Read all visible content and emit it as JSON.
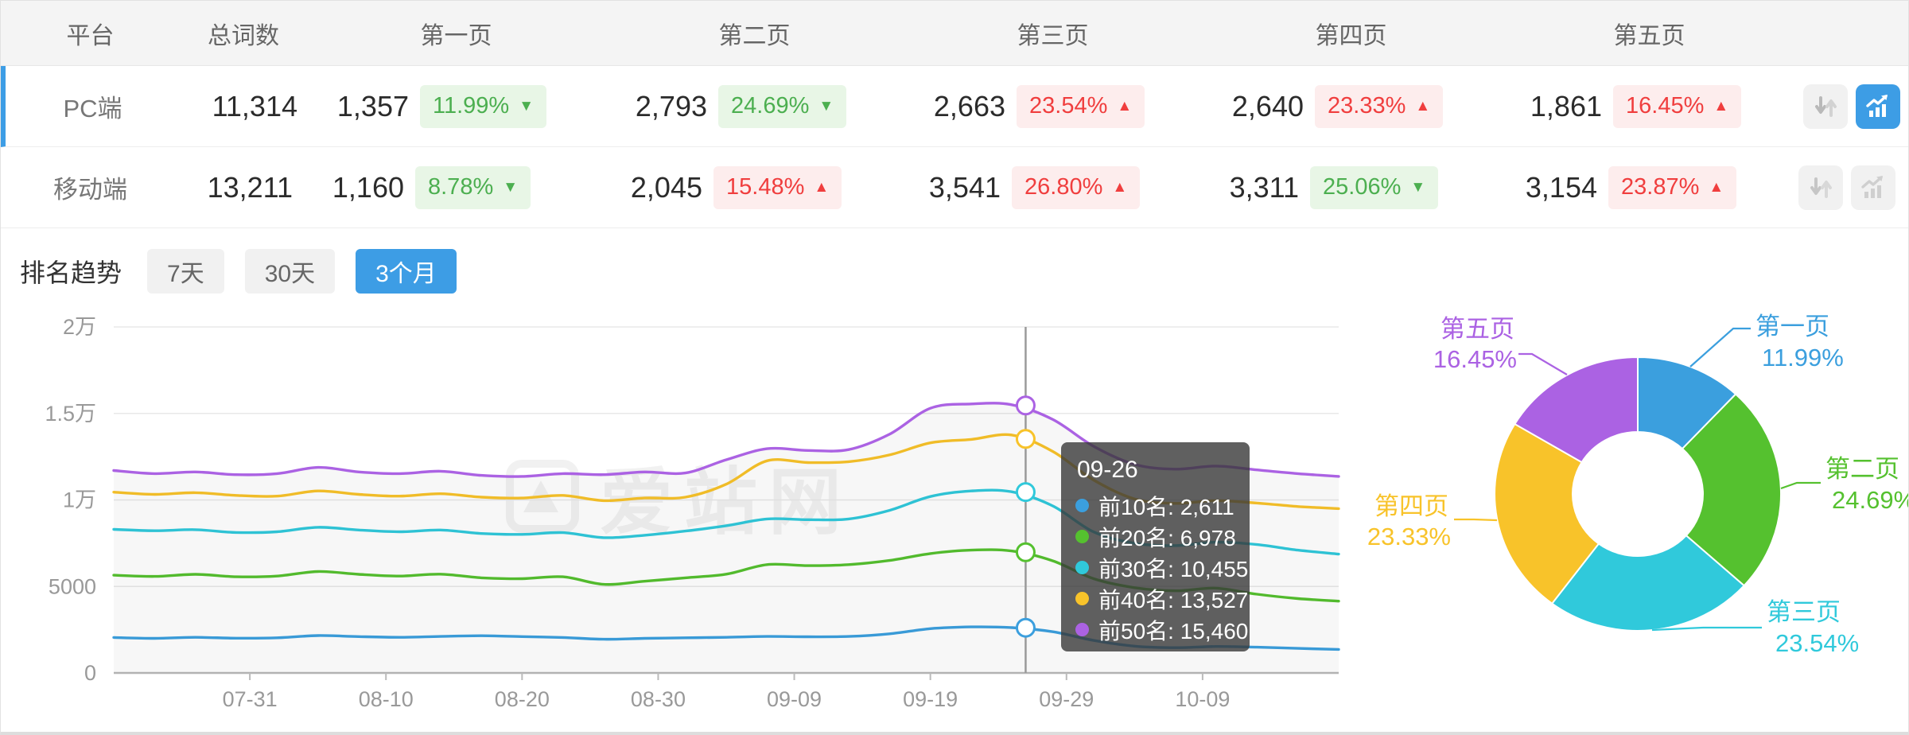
{
  "colors": {
    "accent_blue": "#3d9de5",
    "up_red": "#f03e3e",
    "down_green": "#4caf50",
    "badge_red_bg": "#fdeded",
    "badge_green_bg": "#e8f6e6"
  },
  "table": {
    "headers": [
      "平台",
      "总词数",
      "第一页",
      "第二页",
      "第三页",
      "第四页",
      "第五页"
    ],
    "rows": [
      {
        "platform": "PC端",
        "total": "11,314",
        "selected": true,
        "chart_active": true,
        "pages": [
          {
            "value": "1,357",
            "pct": "11.99%",
            "dir": "down"
          },
          {
            "value": "2,793",
            "pct": "24.69%",
            "dir": "down"
          },
          {
            "value": "2,663",
            "pct": "23.54%",
            "dir": "up"
          },
          {
            "value": "2,640",
            "pct": "23.33%",
            "dir": "up"
          },
          {
            "value": "1,861",
            "pct": "16.45%",
            "dir": "up"
          }
        ]
      },
      {
        "platform": "移动端",
        "total": "13,211",
        "selected": false,
        "chart_active": false,
        "pages": [
          {
            "value": "1,160",
            "pct": "8.78%",
            "dir": "down"
          },
          {
            "value": "2,045",
            "pct": "15.48%",
            "dir": "up"
          },
          {
            "value": "3,541",
            "pct": "26.80%",
            "dir": "up"
          },
          {
            "value": "3,311",
            "pct": "25.06%",
            "dir": "down"
          },
          {
            "value": "3,154",
            "pct": "23.87%",
            "dir": "up"
          }
        ]
      }
    ]
  },
  "trend": {
    "label": "排名趋势",
    "tabs": [
      {
        "label": "7天",
        "active": false
      },
      {
        "label": "30天",
        "active": false
      },
      {
        "label": "3个月",
        "active": true
      }
    ]
  },
  "chart_data": [
    {
      "type": "line",
      "title": "排名趋势 (3个月)",
      "watermark": "爱站网",
      "x_start": "07-21",
      "x_step_days": 3,
      "x_ticks": [
        "07-31",
        "08-10",
        "08-20",
        "08-30",
        "09-09",
        "09-19",
        "09-29",
        "10-09"
      ],
      "y_ticks": [
        {
          "label": "0",
          "value": 0
        },
        {
          "label": "5000",
          "value": 5000
        },
        {
          "label": "1万",
          "value": 10000
        },
        {
          "label": "1.5万",
          "value": 15000
        },
        {
          "label": "2万",
          "value": 20000
        }
      ],
      "ylim": [
        0,
        20000
      ],
      "grid": true,
      "series": [
        {
          "name": "前10名",
          "color": "#3b9fde",
          "values": [
            2050,
            2000,
            2060,
            2010,
            2030,
            2160,
            2100,
            2060,
            2110,
            2150,
            2100,
            2050,
            1950,
            2000,
            2030,
            2060,
            2110,
            2090,
            2110,
            2260,
            2560,
            2660,
            2620,
            2380,
            1880,
            1550,
            1460,
            1530,
            1490,
            1420,
            1360
          ]
        },
        {
          "name": "前20名",
          "color": "#55c12f",
          "values": [
            5650,
            5580,
            5700,
            5560,
            5600,
            5860,
            5700,
            5600,
            5710,
            5500,
            5450,
            5560,
            5120,
            5300,
            5500,
            5710,
            6260,
            6200,
            6260,
            6500,
            6900,
            7100,
            7050,
            6480,
            5450,
            4930,
            4750,
            4900,
            4550,
            4300,
            4150
          ]
        },
        {
          "name": "前30名",
          "color": "#30c9db",
          "values": [
            8300,
            8220,
            8280,
            8120,
            8160,
            8420,
            8260,
            8160,
            8260,
            8060,
            8010,
            8110,
            7820,
            7960,
            8200,
            8510,
            8900,
            8860,
            8900,
            9400,
            10200,
            10520,
            10470,
            9650,
            8150,
            7500,
            7360,
            7560,
            7420,
            7100,
            6870
          ]
        },
        {
          "name": "前40名",
          "color": "#f8c32a",
          "values": [
            10450,
            10320,
            10420,
            10260,
            10220,
            10520,
            10320,
            10220,
            10360,
            10160,
            10110,
            10260,
            9960,
            10110,
            10160,
            10910,
            12260,
            12160,
            12210,
            12600,
            13300,
            13500,
            13750,
            12800,
            11150,
            10060,
            9800,
            9960,
            9820,
            9620,
            9500
          ]
        },
        {
          "name": "前50名",
          "color": "#ab62e3",
          "values": [
            11700,
            11520,
            11620,
            11460,
            11520,
            11880,
            11620,
            11520,
            11660,
            11420,
            11360,
            11520,
            11460,
            11620,
            11560,
            12320,
            12960,
            12860,
            12910,
            13800,
            15300,
            15550,
            15500,
            14650,
            13100,
            12060,
            11780,
            11960,
            11740,
            11520,
            11360
          ]
        }
      ],
      "tooltip": {
        "date": "09-26",
        "day_index": 67,
        "items": [
          {
            "name": "前10名",
            "value": "2,611"
          },
          {
            "name": "前20名",
            "value": "6,978"
          },
          {
            "name": "前30名",
            "value": "10,455"
          },
          {
            "name": "前40名",
            "value": "13,527"
          },
          {
            "name": "前50名",
            "value": "15,460"
          }
        ]
      }
    },
    {
      "type": "donut",
      "slices": [
        {
          "label": "第一页",
          "pct": "11.99%",
          "value": 11.99,
          "color": "#3b9fde"
        },
        {
          "label": "第二页",
          "pct": "24.69%",
          "value": 24.69,
          "color": "#55c12f"
        },
        {
          "label": "第三页",
          "pct": "23.54%",
          "value": 23.54,
          "color": "#30c9db"
        },
        {
          "label": "第四页",
          "pct": "23.33%",
          "value": 23.33,
          "color": "#f8c32a"
        },
        {
          "label": "第五页",
          "pct": "16.45%",
          "value": 16.45,
          "color": "#ab62e3"
        }
      ]
    }
  ]
}
